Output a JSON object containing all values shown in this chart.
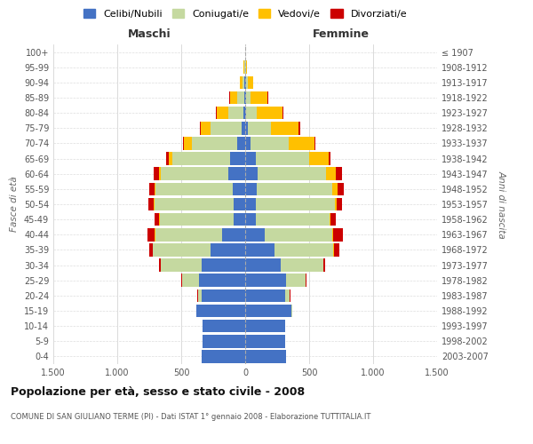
{
  "age_groups": [
    "0-4",
    "5-9",
    "10-14",
    "15-19",
    "20-24",
    "25-29",
    "30-34",
    "35-39",
    "40-44",
    "45-49",
    "50-54",
    "55-59",
    "60-64",
    "65-69",
    "70-74",
    "75-79",
    "80-84",
    "85-89",
    "90-94",
    "95-99",
    "100+"
  ],
  "birth_years": [
    "2003-2007",
    "1998-2002",
    "1993-1997",
    "1988-1992",
    "1983-1987",
    "1978-1982",
    "1973-1977",
    "1968-1972",
    "1963-1967",
    "1958-1962",
    "1953-1957",
    "1948-1952",
    "1943-1947",
    "1938-1942",
    "1933-1937",
    "1928-1932",
    "1923-1927",
    "1918-1922",
    "1913-1917",
    "1908-1912",
    "≤ 1907"
  ],
  "male": {
    "celibi": [
      340,
      330,
      330,
      380,
      340,
      360,
      340,
      270,
      180,
      90,
      90,
      100,
      130,
      120,
      60,
      30,
      15,
      10,
      5,
      2,
      0
    ],
    "coniugati": [
      0,
      0,
      0,
      5,
      30,
      130,
      320,
      450,
      520,
      580,
      620,
      600,
      530,
      450,
      360,
      240,
      120,
      50,
      15,
      5,
      0
    ],
    "vedovi": [
      0,
      0,
      0,
      0,
      0,
      5,
      0,
      0,
      5,
      5,
      5,
      10,
      15,
      30,
      60,
      80,
      90,
      60,
      20,
      5,
      0
    ],
    "divorziati": [
      0,
      0,
      0,
      0,
      5,
      5,
      15,
      30,
      60,
      30,
      40,
      40,
      40,
      15,
      5,
      5,
      5,
      5,
      5,
      0,
      0
    ]
  },
  "female": {
    "nubili": [
      320,
      310,
      310,
      360,
      310,
      320,
      280,
      230,
      150,
      80,
      80,
      90,
      100,
      80,
      40,
      20,
      10,
      5,
      5,
      2,
      0
    ],
    "coniugate": [
      0,
      0,
      0,
      10,
      35,
      150,
      330,
      460,
      530,
      580,
      620,
      590,
      530,
      420,
      300,
      180,
      80,
      40,
      15,
      5,
      0
    ],
    "vedove": [
      0,
      0,
      0,
      0,
      5,
      5,
      0,
      5,
      5,
      10,
      15,
      40,
      80,
      150,
      200,
      220,
      200,
      130,
      40,
      10,
      0
    ],
    "divorziate": [
      0,
      0,
      0,
      0,
      5,
      5,
      15,
      40,
      80,
      40,
      40,
      50,
      50,
      15,
      10,
      10,
      10,
      5,
      0,
      0,
      0
    ]
  },
  "colors": {
    "celibi": "#4472c4",
    "coniugati": "#c5d9a0",
    "vedovi": "#ffc000",
    "divorziati": "#cc0000"
  },
  "xlim": 1500,
  "title": "Popolazione per età, sesso e stato civile - 2008",
  "subtitle": "COMUNE DI SAN GIULIANO TERME (PI) - Dati ISTAT 1° gennaio 2008 - Elaborazione TUTTITALIA.IT",
  "ylabel_left": "Fasce di età",
  "ylabel_right": "Anni di nascita",
  "xlabel_left": "Maschi",
  "xlabel_right": "Femmine",
  "legend_labels": [
    "Celibi/Nubili",
    "Coniugati/e",
    "Vedovi/e",
    "Divorziati/e"
  ],
  "xticks": [
    -1500,
    -1000,
    -500,
    0,
    500,
    1000,
    1500
  ],
  "xtick_labels": [
    "1.500",
    "1.000",
    "500",
    "0",
    "500",
    "1.000",
    "1.500"
  ]
}
